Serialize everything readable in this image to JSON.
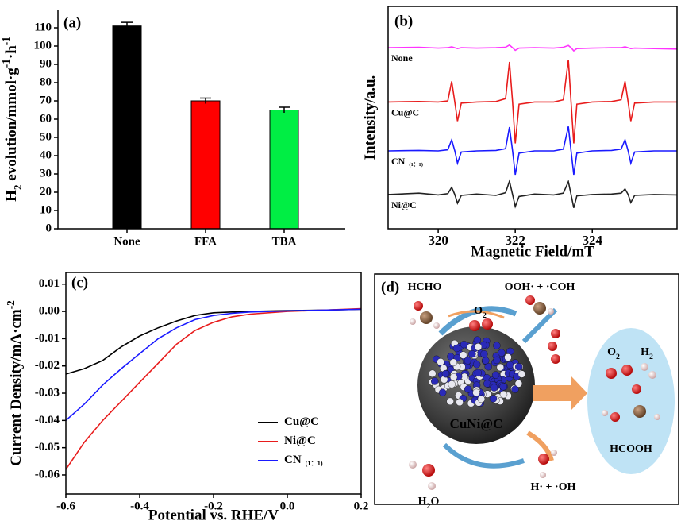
{
  "chart_data": [
    {
      "type": "bar",
      "panel_label": "(a)",
      "ylabel": [
        {
          "text": "H"
        },
        {
          "sub": "2"
        },
        {
          "text": " evolution/mmol·g"
        },
        {
          "sup": "-1"
        },
        {
          "text": "·h"
        },
        {
          "sup": "-1"
        }
      ],
      "categories": [
        "None",
        "FFA",
        "TBA"
      ],
      "values": [
        111,
        70,
        65
      ],
      "errors": [
        2,
        1.5,
        1.5
      ],
      "colors": [
        "#000000",
        "#ff0000",
        "#00ee44"
      ],
      "ylim": [
        0,
        120
      ],
      "yticks": [
        0,
        10,
        20,
        30,
        40,
        50,
        60,
        70,
        80,
        90,
        100,
        110
      ]
    },
    {
      "type": "line",
      "panel_label": "(b)",
      "xlabel": "Magnetic Field/mT",
      "ylabel": [
        {
          "text": "Intensity/a.u."
        }
      ],
      "x": [
        318.7,
        319.5,
        320.0,
        320.25,
        320.35,
        320.43,
        320.5,
        320.6,
        321.0,
        321.5,
        321.75,
        321.85,
        321.93,
        322.0,
        322.1,
        322.5,
        323.0,
        323.25,
        323.38,
        323.45,
        323.52,
        323.6,
        324.0,
        324.5,
        324.75,
        324.85,
        324.93,
        325.0,
        325.1,
        325.6,
        326.2
      ],
      "xlim": [
        318.7,
        326.2
      ],
      "xticks": [
        320,
        322,
        324
      ],
      "ylim": [
        0,
        10
      ],
      "series": [
        {
          "name": "None",
          "color": "#ff33ff",
          "values": [
            8.14,
            8.16,
            8.12,
            8.14,
            8.18,
            8.14,
            8.1,
            8.14,
            8.12,
            8.14,
            8.16,
            8.26,
            8.14,
            8.02,
            8.12,
            8.14,
            8.12,
            8.16,
            8.24,
            8.14,
            8.0,
            8.1,
            8.12,
            8.14,
            8.14,
            8.18,
            8.14,
            8.1,
            8.12,
            8.1,
            8.08
          ]
        },
        {
          "name": "Cu@C",
          "color": "#e81c1c",
          "values": [
            5.7,
            5.72,
            5.7,
            5.75,
            6.63,
            5.7,
            4.84,
            5.65,
            5.7,
            5.72,
            5.85,
            7.5,
            5.7,
            3.84,
            5.6,
            5.7,
            5.7,
            5.8,
            7.6,
            5.7,
            3.84,
            5.6,
            5.7,
            5.72,
            5.8,
            6.63,
            5.7,
            4.84,
            5.65,
            5.7,
            5.7
          ]
        },
        {
          "name": "CN",
          "name_sub": "(1：1)",
          "color": "#1a1aff",
          "values": [
            3.5,
            3.52,
            3.5,
            3.55,
            4.0,
            3.5,
            2.95,
            3.45,
            3.5,
            3.52,
            3.6,
            4.57,
            3.5,
            2.43,
            3.4,
            3.5,
            3.5,
            3.58,
            4.6,
            3.5,
            2.43,
            3.4,
            3.5,
            3.52,
            3.58,
            4.0,
            3.5,
            2.95,
            3.45,
            3.5,
            3.5
          ]
        },
        {
          "name": "Ni@C",
          "color": "#222222",
          "values": [
            1.54,
            1.6,
            1.52,
            1.58,
            1.86,
            1.54,
            1.15,
            1.5,
            1.56,
            1.5,
            1.62,
            2.14,
            1.54,
            1.0,
            1.45,
            1.56,
            1.52,
            1.6,
            2.12,
            1.54,
            0.94,
            1.48,
            1.54,
            1.56,
            1.6,
            1.79,
            1.54,
            1.18,
            1.5,
            1.54,
            1.52
          ]
        }
      ]
    },
    {
      "type": "line",
      "panel_label": "(c)",
      "legend": "lower right",
      "xlabel": "Potential vs. RHE/V",
      "ylabel": [
        {
          "text": "Current Density/mA·cm"
        },
        {
          "sup": "-2"
        }
      ],
      "x": [
        -0.6,
        -0.55,
        -0.5,
        -0.45,
        -0.4,
        -0.35,
        -0.3,
        -0.25,
        -0.2,
        -0.15,
        -0.1,
        0,
        0.1,
        0.2
      ],
      "xlim": [
        -0.6,
        0.2
      ],
      "xticks": [
        -0.6,
        -0.4,
        -0.2,
        {
          "value": 0,
          "label": "0.0"
        },
        0.2
      ],
      "ylim": [
        -0.067,
        0.0143
      ],
      "yticks": [
        0.01,
        {
          "value": 0,
          "label": "0.00"
        },
        -0.01,
        -0.02,
        -0.03,
        -0.04,
        -0.05,
        -0.06
      ],
      "series": [
        {
          "name": "Cu@C",
          "color": "#000000",
          "values": [
            -0.023,
            -0.021,
            -0.018,
            -0.013,
            -0.009,
            -0.006,
            -0.0035,
            -0.0015,
            -0.0005,
            -0.0002,
            0,
            0.0003,
            0.0005,
            0.0008
          ]
        },
        {
          "name": "Ni@C",
          "color": "#e81c1c",
          "values": [
            -0.058,
            -0.048,
            -0.04,
            -0.033,
            -0.026,
            -0.019,
            -0.012,
            -0.007,
            -0.004,
            -0.002,
            -0.001,
            0,
            0.0005,
            0.001
          ]
        },
        {
          "name": "CN",
          "name_sub": "(1：1)",
          "color": "#1a1aff",
          "values": [
            -0.04,
            -0.034,
            -0.027,
            -0.021,
            -0.0155,
            -0.01,
            -0.006,
            -0.003,
            -0.0015,
            -0.0007,
            -0.0002,
            0.0002,
            0.0005,
            0.0008
          ]
        }
      ]
    }
  ],
  "diagram": {
    "panel_label": "(d)",
    "labels": [
      [
        {
          "text": "HCHO"
        }
      ],
      [
        {
          "text": "O"
        },
        {
          "sub": "2"
        }
      ],
      [
        {
          "text": "OOH· + ·COH"
        }
      ],
      [
        {
          "text": "CuNi@C"
        }
      ],
      [
        {
          "text": "O"
        },
        {
          "sub": "2"
        }
      ],
      [
        {
          "text": "H"
        },
        {
          "sub": "2"
        }
      ],
      [
        {
          "text": "HCOOH"
        }
      ],
      [
        {
          "text": "H"
        },
        {
          "sub": "2"
        },
        {
          "text": "O"
        }
      ],
      [
        {
          "text": "H· + ·OH"
        }
      ]
    ]
  }
}
